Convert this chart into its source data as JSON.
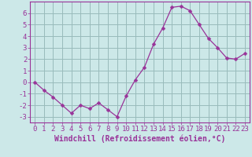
{
  "x": [
    0,
    1,
    2,
    3,
    4,
    5,
    6,
    7,
    8,
    9,
    10,
    11,
    12,
    13,
    14,
    15,
    16,
    17,
    18,
    19,
    20,
    21,
    22,
    23
  ],
  "y": [
    0.0,
    -0.7,
    -1.3,
    -2.0,
    -2.7,
    -2.0,
    -2.3,
    -1.8,
    -2.4,
    -3.0,
    -1.2,
    0.2,
    1.3,
    3.3,
    4.7,
    6.5,
    6.6,
    6.2,
    5.0,
    3.8,
    3.0,
    2.1,
    2.0,
    2.5
  ],
  "line_color": "#993399",
  "marker": "D",
  "marker_size": 2.5,
  "bg_color": "#cce8e8",
  "grid_color": "#99bbbb",
  "xlabel": "Windchill (Refroidissement éolien,°C)",
  "xlim": [
    -0.5,
    23.5
  ],
  "ylim": [
    -3.5,
    7.0
  ],
  "xticks": [
    0,
    1,
    2,
    3,
    4,
    5,
    6,
    7,
    8,
    9,
    10,
    11,
    12,
    13,
    14,
    15,
    16,
    17,
    18,
    19,
    20,
    21,
    22,
    23
  ],
  "yticks": [
    -3,
    -2,
    -1,
    0,
    1,
    2,
    3,
    4,
    5,
    6
  ],
  "xlabel_fontsize": 7,
  "tick_fontsize": 6.5,
  "axis_color": "#993399",
  "tick_color": "#993399"
}
